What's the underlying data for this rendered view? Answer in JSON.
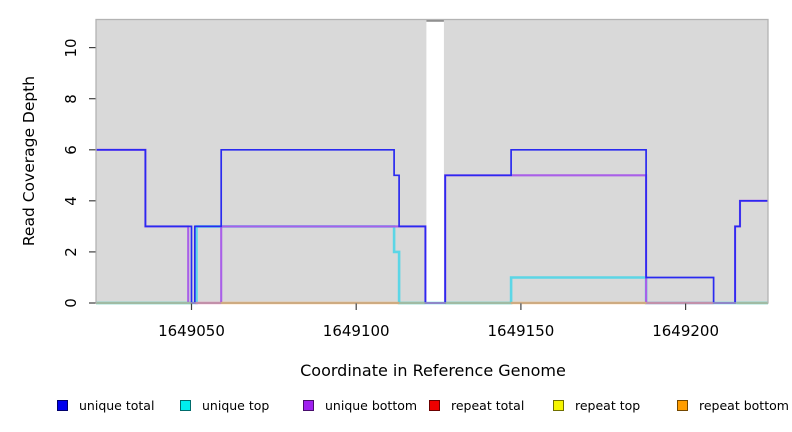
{
  "figure": {
    "background": "#ffffff",
    "panel_color": "#d9d9d9",
    "border_color": "#b3b3b3",
    "tick_color": "#404040",
    "text_color": "#000000"
  },
  "chart_data": {
    "type": "line",
    "subtype": "step-coverage",
    "title": "",
    "xlabel": "Coordinate in Reference Genome",
    "ylabel": "Read Coverage Depth",
    "xlim": [
      1649021,
      1649225
    ],
    "ylim": [
      0,
      11
    ],
    "x_ticks": [
      1649050,
      1649100,
      1649150,
      1649200
    ],
    "y_ticks": [
      0,
      2,
      4,
      6,
      8,
      10
    ],
    "grid": false,
    "legend_position": "bottom",
    "masked_region": {
      "x_start": 1649121.3,
      "x_end": 1649126.6,
      "color": "#ffffff",
      "edge_color": "#8a8a8a"
    },
    "series": [
      {
        "name": "unique total",
        "color": "#2a2af0",
        "width": 1.7,
        "steps": [
          [
            1649021,
            6
          ],
          [
            1649036,
            3
          ],
          [
            1649050,
            0
          ],
          [
            1649051,
            3
          ],
          [
            1649059,
            6
          ],
          [
            1649111.5,
            5
          ],
          [
            1649113,
            3
          ],
          [
            1649121,
            0
          ],
          [
            1649127,
            5
          ],
          [
            1649147,
            6
          ],
          [
            1649188,
            1
          ],
          [
            1649208.5,
            0
          ],
          [
            1649215,
            3
          ],
          [
            1649216.5,
            4
          ],
          [
            1649225,
            4
          ]
        ]
      },
      {
        "name": "unique top",
        "color": "#5cd6e6",
        "width": 2.6,
        "steps": [
          [
            1649021,
            0
          ],
          [
            1649051.5,
            3
          ],
          [
            1649111.5,
            2
          ],
          [
            1649113,
            0
          ],
          [
            1649147,
            1
          ],
          [
            1649188,
            0
          ],
          [
            1649225,
            0
          ]
        ]
      },
      {
        "name": "unique bottom",
        "color": "#a95fe8",
        "width": 2.1,
        "steps": [
          [
            1649021,
            6
          ],
          [
            1649036,
            3
          ],
          [
            1649049,
            0
          ],
          [
            1649059,
            3
          ],
          [
            1649121,
            0
          ],
          [
            1649127,
            5
          ],
          [
            1649188,
            0
          ],
          [
            1649215,
            3
          ],
          [
            1649216.5,
            4
          ],
          [
            1649225,
            4
          ]
        ]
      },
      {
        "name": "repeat total",
        "color": "#ee2222",
        "width": 2,
        "steps": [
          [
            1649021,
            0
          ],
          [
            1649225,
            0
          ]
        ]
      },
      {
        "name": "repeat top",
        "color": "#f5f500",
        "width": 2,
        "steps": [
          [
            1649021,
            0
          ],
          [
            1649225,
            0
          ]
        ]
      },
      {
        "name": "repeat bottom",
        "color": "#ff9d26",
        "width": 2,
        "steps": [
          [
            1649021,
            0
          ],
          [
            1649225,
            0
          ]
        ]
      }
    ],
    "baseline_note": "segments at depth 0 render as anti-aliased overlaps of multiple zero-depth series: green = cyan+yellow, pink = red+purple, orange = repeat bottom",
    "baseline_overlap_segments": [
      {
        "from": 1649021,
        "to": 1649050.3,
        "color": "#7ecb87"
      },
      {
        "from": 1649051,
        "to": 1649059,
        "color": "#df4f9a"
      },
      {
        "from": 1649059,
        "to": 1649113,
        "color": "#ff9d26"
      },
      {
        "from": 1649113,
        "to": 1649121,
        "color": "#7ecb87"
      },
      {
        "from": 1649127,
        "to": 1649147,
        "color": "#7ecb87"
      },
      {
        "from": 1649147,
        "to": 1649188,
        "color": "#ff9d26"
      },
      {
        "from": 1649188,
        "to": 1649208.5,
        "color": "#df4f9a"
      },
      {
        "from": 1649215.5,
        "to": 1649225,
        "color": "#7ecb87"
      }
    ]
  },
  "legend": {
    "items": [
      {
        "label": "unique total",
        "color": "#0000ee"
      },
      {
        "label": "unique top",
        "color": "#00eeee"
      },
      {
        "label": "unique bottom",
        "color": "#a020f0"
      },
      {
        "label": "repeat total",
        "color": "#ee0000"
      },
      {
        "label": "repeat top",
        "color": "#f5f500"
      },
      {
        "label": "repeat bottom",
        "color": "#ff9d00"
      }
    ]
  }
}
